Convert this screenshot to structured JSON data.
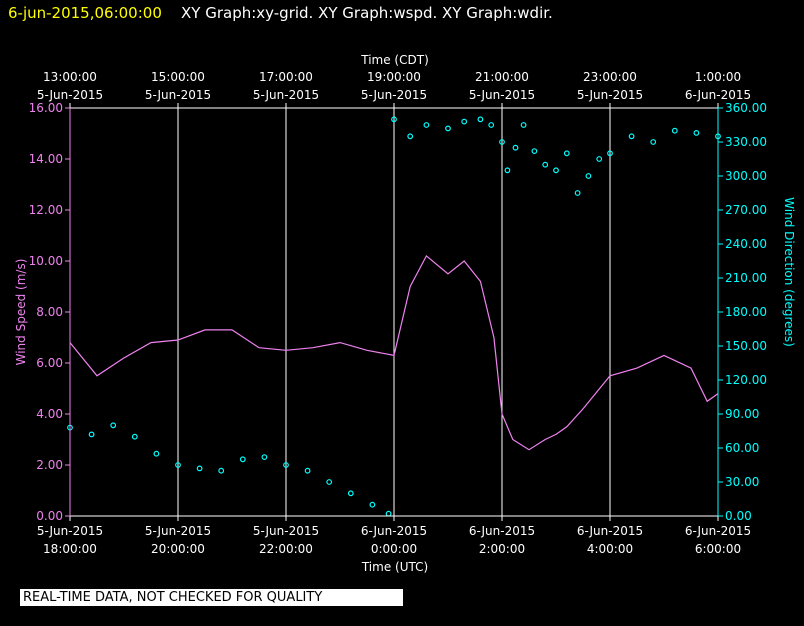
{
  "header": {
    "timestamp": "6-jun-2015,06:00:00",
    "graphs": "XY Graph:xy-grid.  XY Graph:wspd.  XY Graph:wdir."
  },
  "notice": "REAL-TIME DATA, NOT CHECKED FOR QUALITY",
  "colors": {
    "speed": "#ee82ee",
    "direction": "#00ffff",
    "grid": "#ffffff",
    "timestamp": "#ffff00"
  },
  "chart_data": {
    "type": "scatter",
    "top_axis": {
      "label": "Time (CDT)",
      "ticks": [
        [
          "13:00:00",
          "5-Jun-2015"
        ],
        [
          "15:00:00",
          "5-Jun-2015"
        ],
        [
          "17:00:00",
          "5-Jun-2015"
        ],
        [
          "19:00:00",
          "5-Jun-2015"
        ],
        [
          "21:00:00",
          "5-Jun-2015"
        ],
        [
          "23:00:00",
          "5-Jun-2015"
        ],
        [
          "1:00:00",
          "6-Jun-2015"
        ]
      ]
    },
    "bottom_axis": {
      "label": "Time (UTC)",
      "ticks": [
        [
          "5-Jun-2015",
          "18:00:00"
        ],
        [
          "5-Jun-2015",
          "20:00:00"
        ],
        [
          "5-Jun-2015",
          "22:00:00"
        ],
        [
          "6-Jun-2015",
          "0:00:00"
        ],
        [
          "6-Jun-2015",
          "2:00:00"
        ],
        [
          "6-Jun-2015",
          "4:00:00"
        ],
        [
          "6-Jun-2015",
          "6:00:00"
        ]
      ]
    },
    "xlim_utc": [
      "2015-06-05T18:00:00",
      "2015-06-06T06:00:00"
    ],
    "left_axis": {
      "label": "Wind Speed (m/s)",
      "ylim": [
        0,
        16
      ],
      "ticks": [
        "0.00",
        "2.00",
        "4.00",
        "6.00",
        "8.00",
        "10.00",
        "12.00",
        "14.00",
        "16.00"
      ]
    },
    "right_axis": {
      "label": "Wind Direction (degrees)",
      "ylim": [
        0,
        360
      ],
      "ticks": [
        "0.00",
        "30.00",
        "60.00",
        "90.00",
        "120.00",
        "150.00",
        "180.00",
        "210.00",
        "240.00",
        "270.00",
        "300.00",
        "330.00",
        "360.00"
      ]
    },
    "series": [
      {
        "kind": "line",
        "axis": "left",
        "x_hours_utc": [
          18.0,
          18.5,
          19.0,
          19.5,
          20.0,
          20.5,
          21.0,
          21.5,
          22.0,
          22.5,
          23.0,
          23.5,
          24.0,
          24.3,
          24.6,
          25.0,
          25.3,
          25.6,
          25.85,
          26.0,
          26.2,
          26.5,
          26.8,
          27.0,
          27.2,
          27.5,
          28.0,
          28.5,
          29.0,
          29.5,
          29.8,
          30.0
        ],
        "values": [
          6.8,
          5.5,
          6.2,
          6.8,
          6.9,
          7.3,
          7.3,
          6.6,
          6.5,
          6.6,
          6.8,
          6.5,
          6.3,
          9.0,
          10.2,
          9.5,
          10.0,
          9.2,
          7.0,
          4.0,
          3.0,
          2.6,
          3.0,
          3.2,
          3.5,
          4.2,
          5.5,
          5.8,
          6.3,
          5.8,
          4.5,
          4.8
        ]
      },
      {
        "kind": "scatter",
        "axis": "right",
        "x_hours_utc": [
          18.0,
          18.4,
          18.8,
          19.2,
          19.6,
          20.0,
          20.4,
          20.8,
          21.2,
          21.6,
          22.0,
          22.4,
          22.8,
          23.2,
          23.6,
          23.9,
          24.0,
          24.3,
          24.6,
          25.0,
          25.3,
          25.6,
          25.8,
          26.0,
          26.1,
          26.25,
          26.4,
          26.6,
          26.8,
          27.0,
          27.2,
          27.4,
          27.6,
          27.8,
          28.0,
          28.4,
          28.8,
          29.2,
          29.6,
          30.0
        ],
        "values": [
          78,
          72,
          80,
          70,
          55,
          45,
          42,
          40,
          50,
          52,
          45,
          40,
          30,
          20,
          10,
          2,
          350,
          335,
          345,
          342,
          348,
          350,
          345,
          330,
          305,
          325,
          345,
          322,
          310,
          305,
          320,
          285,
          300,
          315,
          320,
          335,
          330,
          340,
          338,
          335
        ]
      }
    ]
  }
}
